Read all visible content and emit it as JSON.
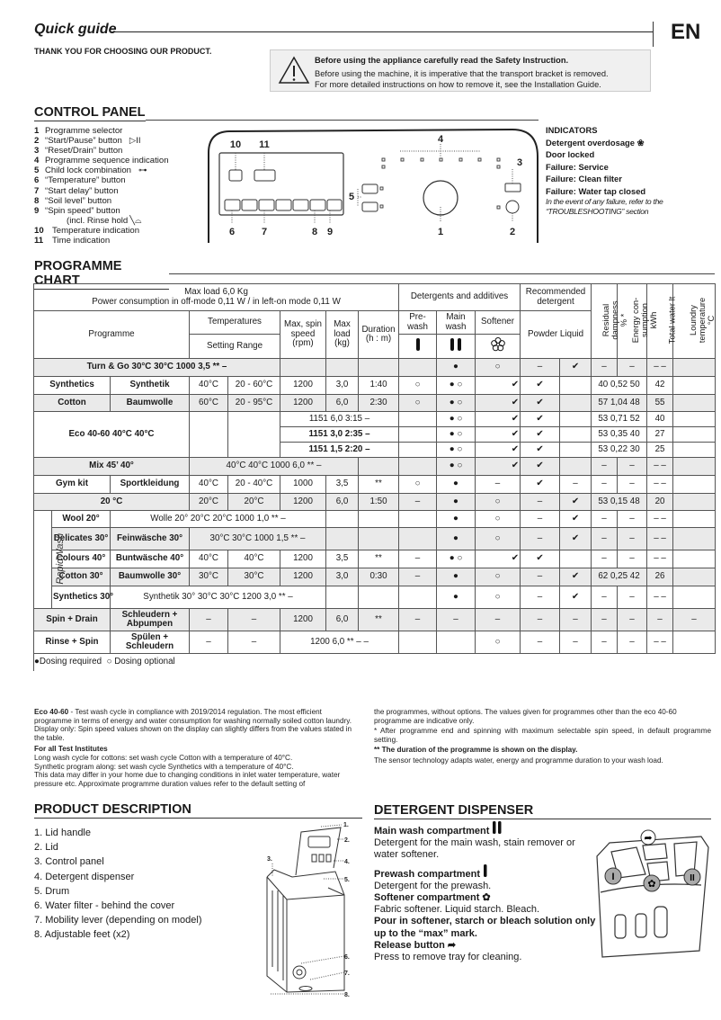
{
  "header": {
    "title": "Quick guide",
    "lang": "EN",
    "thanks": "THANK YOU FOR CHOOSING OUR PRODUCT.",
    "warning": {
      "icon": "warning-triangle-icon",
      "title": "Before using the appliance carefully read the Safety Instruction.",
      "line1": "Before using the machine, it is imperative that the transport bracket is removed.",
      "line2": "For more detailed instructions on how to remove it, see the Installation Guide."
    }
  },
  "control_panel": {
    "heading": "CONTROL PANEL",
    "items": [
      {
        "n": "1",
        "label": "Programme selector"
      },
      {
        "n": "2",
        "label": "“Start/Pause” button",
        "icon": "start-pause-icon"
      },
      {
        "n": "3",
        "label": "“Reset/Drain” button"
      },
      {
        "n": "4",
        "label": "Programme sequence indication"
      },
      {
        "n": "5",
        "label": "Child lock combination",
        "icon": "key-icon"
      },
      {
        "n": "6",
        "label": "“Temperature” button"
      },
      {
        "n": "7",
        "label": "“Start delay” button"
      },
      {
        "n": "8",
        "label": "“Soil level” button"
      },
      {
        "n": "9",
        "label": "“Spin speed” button"
      },
      {
        "n": "",
        "label": "(incl. Rinse hold",
        "icon": "rinse-hold-icon"
      },
      {
        "n": "10",
        "label": "Temperature indication"
      },
      {
        "n": "11",
        "label": "Time indication"
      }
    ],
    "diagram_labels": [
      "10",
      "11",
      "4",
      "3",
      "5",
      "6",
      "7",
      "8",
      "9",
      "1",
      "2"
    ],
    "indicators": {
      "heading": "INDICATORS",
      "items": [
        "Detergent overdosage",
        "Door locked",
        "Failure: Service",
        "Failure: Clean filter",
        "Failure: Water tap closed"
      ],
      "note": "In the event of any failure, refer to the “TROUBLESHOOTING” section"
    }
  },
  "programme_chart": {
    "heading": "PROGRAMME CHART",
    "header": {
      "max_load": "Max load 6,0 Kg",
      "power": "Power consumption in off-mode 0,11 W / in left-on mode 0,11 W",
      "detergents": "Detergents and additives",
      "recommended": "Recommended detergent",
      "residual": "Residual dampness % *",
      "energy": "Energy con- sumption kWh",
      "water": "Total water lt",
      "laundry": "Loundry temperature °C",
      "programme": "Programme",
      "temperatures": "Temperatures",
      "setting_range": "Setting Range",
      "spin": "Max, spin speed (rpm)",
      "load": "Max load (kg)",
      "duration": "Duration (h : m)",
      "prewash": "Pre- wash",
      "mainwash": "Main wash",
      "softener": "Softener",
      "powder_liquid": "Powder Liquid"
    },
    "rows": [
      [
        "Turn & Go 30°C 30°C 1000 3,5 ** –",
        "",
        "",
        "",
        "",
        "●",
        "○",
        "–",
        "✔",
        "–",
        "–",
        "– –",
        ""
      ],
      [
        "Synthetics",
        "Synthetik",
        "40°C",
        "20 - 60°C",
        "1200",
        "3,0",
        "1:40",
        "○",
        "●  ○",
        "✔",
        "✔",
        "",
        "40 0,52 50",
        "42",
        ""
      ],
      [
        "Cotton",
        "Baumwolle",
        "60°C",
        "20 - 95°C",
        "1200",
        "6,0",
        "2:30",
        "○",
        "●  ○",
        "✔",
        "✔",
        "",
        "57 1,04 48",
        "55",
        ""
      ],
      [
        "Eco 40-60 40°C 40°C",
        "",
        "",
        "1151 6,0      3:15        –",
        "",
        "●  ○",
        "✔",
        "✔",
        "",
        "53 0,71 52",
        "40",
        ""
      ],
      [
        "1151 3,0      2:35        –",
        "",
        "●  ○",
        "✔",
        "✔",
        "",
        "53 0,35 40",
        "27",
        ""
      ],
      [
        "1151 1,5      2:20        –",
        "",
        "●  ○",
        "✔",
        "✔",
        "",
        "53 0,22 30",
        "25",
        ""
      ],
      [
        "Mix 45’ 40°",
        "40°C 40°C 1000 6,0 ** –",
        "",
        "",
        "●  ○",
        "✔",
        "✔",
        "",
        "–",
        "–",
        "– –",
        ""
      ],
      [
        "Gym kit",
        "Sportkleidung",
        "40°C",
        "20 - 40°C",
        "1000",
        "3,5",
        "**",
        "○",
        "●",
        "–",
        "✔",
        "–",
        "–",
        "–",
        "– –",
        ""
      ],
      [
        "20 °C",
        "20°C",
        "20°C",
        "1200",
        "6,0",
        "1:50",
        "–",
        "●",
        "○",
        "–",
        "✔",
        "53 0,15 48",
        "20",
        ""
      ],
      [
        "RapidWash",
        "Wool 20°",
        "Wolle 20° 20°C 20°C 1000 1,0 ** –",
        "",
        "",
        "",
        "●",
        "○",
        "–",
        "✔",
        "–",
        "–",
        "– –",
        ""
      ],
      [
        "Delicates 30°",
        "Feinwäsche 30°",
        "30°C 30°C 1000 1,5 ** –",
        "",
        "",
        "",
        "●",
        "○",
        "–",
        "✔",
        "–",
        "–",
        "– –",
        ""
      ],
      [
        "Colours 40°",
        "Buntwäsche 40°",
        "40°C",
        "40°C",
        "1200",
        "3,5",
        "**",
        "–",
        "●  ○",
        "✔",
        "✔",
        "",
        "–",
        "–",
        "– –",
        ""
      ],
      [
        "Cotton 30°",
        "Baumwolle 30°",
        "30°C",
        "30°C",
        "1200",
        "3,0",
        "0:30",
        "–",
        "●",
        "○",
        "–",
        "✔",
        "62 0,25 42",
        "26",
        ""
      ],
      [
        "Synthetics 30°",
        "Synthetik 30° 30°C 30°C 1200 3,0 ** –",
        "",
        "",
        "",
        "●",
        "○",
        "–",
        "✔",
        "–",
        "–",
        "– –",
        ""
      ],
      [
        "Spin + Drain",
        "Schleudern + Abpumpen",
        "–",
        "–",
        "1200",
        "6,0",
        "**",
        "–",
        "–",
        "–",
        "–",
        "–",
        "–",
        "–",
        "–",
        "–"
      ],
      [
        "Rinse + Spin",
        "Spülen + Schleudern",
        "–",
        "–",
        "1200 6,0 ** – –",
        "",
        "",
        "○",
        "–",
        "–",
        "–",
        "–",
        "– –",
        ""
      ]
    ],
    "legend": {
      "required": "Dosing required",
      "optional": "Dosing optional"
    }
  },
  "footnotes": {
    "eco_title": "Eco 40-60",
    "eco_text": " - Test wash cycle in compliance with 2019/2014 regulation. The most efficient programme in terms of energy and water consumption for washing normally soiled cotton laundry. Display only: Spin speed values shown on the display can slightly differs from the values stated in the table.",
    "institutes_title": "For all Test Institutes",
    "institutes_1": "Long wash cycle for cottons:  set wash cycle Cotton with a temperature of 40°C.",
    "institutes_2": "Synthetic program along:  set wash cycle Synthetics with a temperature of 40°C.",
    "institutes_3": "This data may differ in your home due to changing conditions in inlet water temperature, water pressure etc. Approximate programme duration values refer to the default setting of",
    "right_1": "the programmes, without options. The values given for programmes other than the eco 40-60 programme are indicative only.",
    "right_2": "* After programme end and spinning with maximum selectable spin speed, in default programme setting.",
    "right_3": "** The duration of the programme is shown on the display.",
    "right_4": "The sensor technology adapts water, energy and programme duration to your wash load."
  },
  "product_description": {
    "heading": "PRODUCT DESCRIPTION",
    "items": [
      "1.  Lid handle",
      "2.  Lid",
      "3.  Control panel",
      "4.  Detergent dispenser",
      "5.  Drum",
      "6.  Water filter - behind the cover",
      "7.  Mobility lever (depending on model)",
      "8.  Adjustable feet (x2)"
    ],
    "callouts": [
      "1.",
      "2.",
      "3.",
      "4.",
      "5.",
      "6.",
      "7.",
      "8."
    ]
  },
  "detergent_dispenser": {
    "heading": "DETERGENT DISPENSER",
    "main_title": "Main wash compartment",
    "main_text": "Detergent for the main wash, stain remover or water softener.",
    "pre_title": "Prewash compartment",
    "pre_text": "Detergent for the prewash.",
    "soft_title": "Softener compartment",
    "soft_text": "Fabric softener. Liquid starch. Bleach.",
    "pour_text": "Pour in softener, starch or bleach  solution only up to the “max” mark.",
    "release_title": "Release button",
    "release_text": "Press to remove tray for cleaning.",
    "callouts": [
      "I",
      "II"
    ]
  }
}
